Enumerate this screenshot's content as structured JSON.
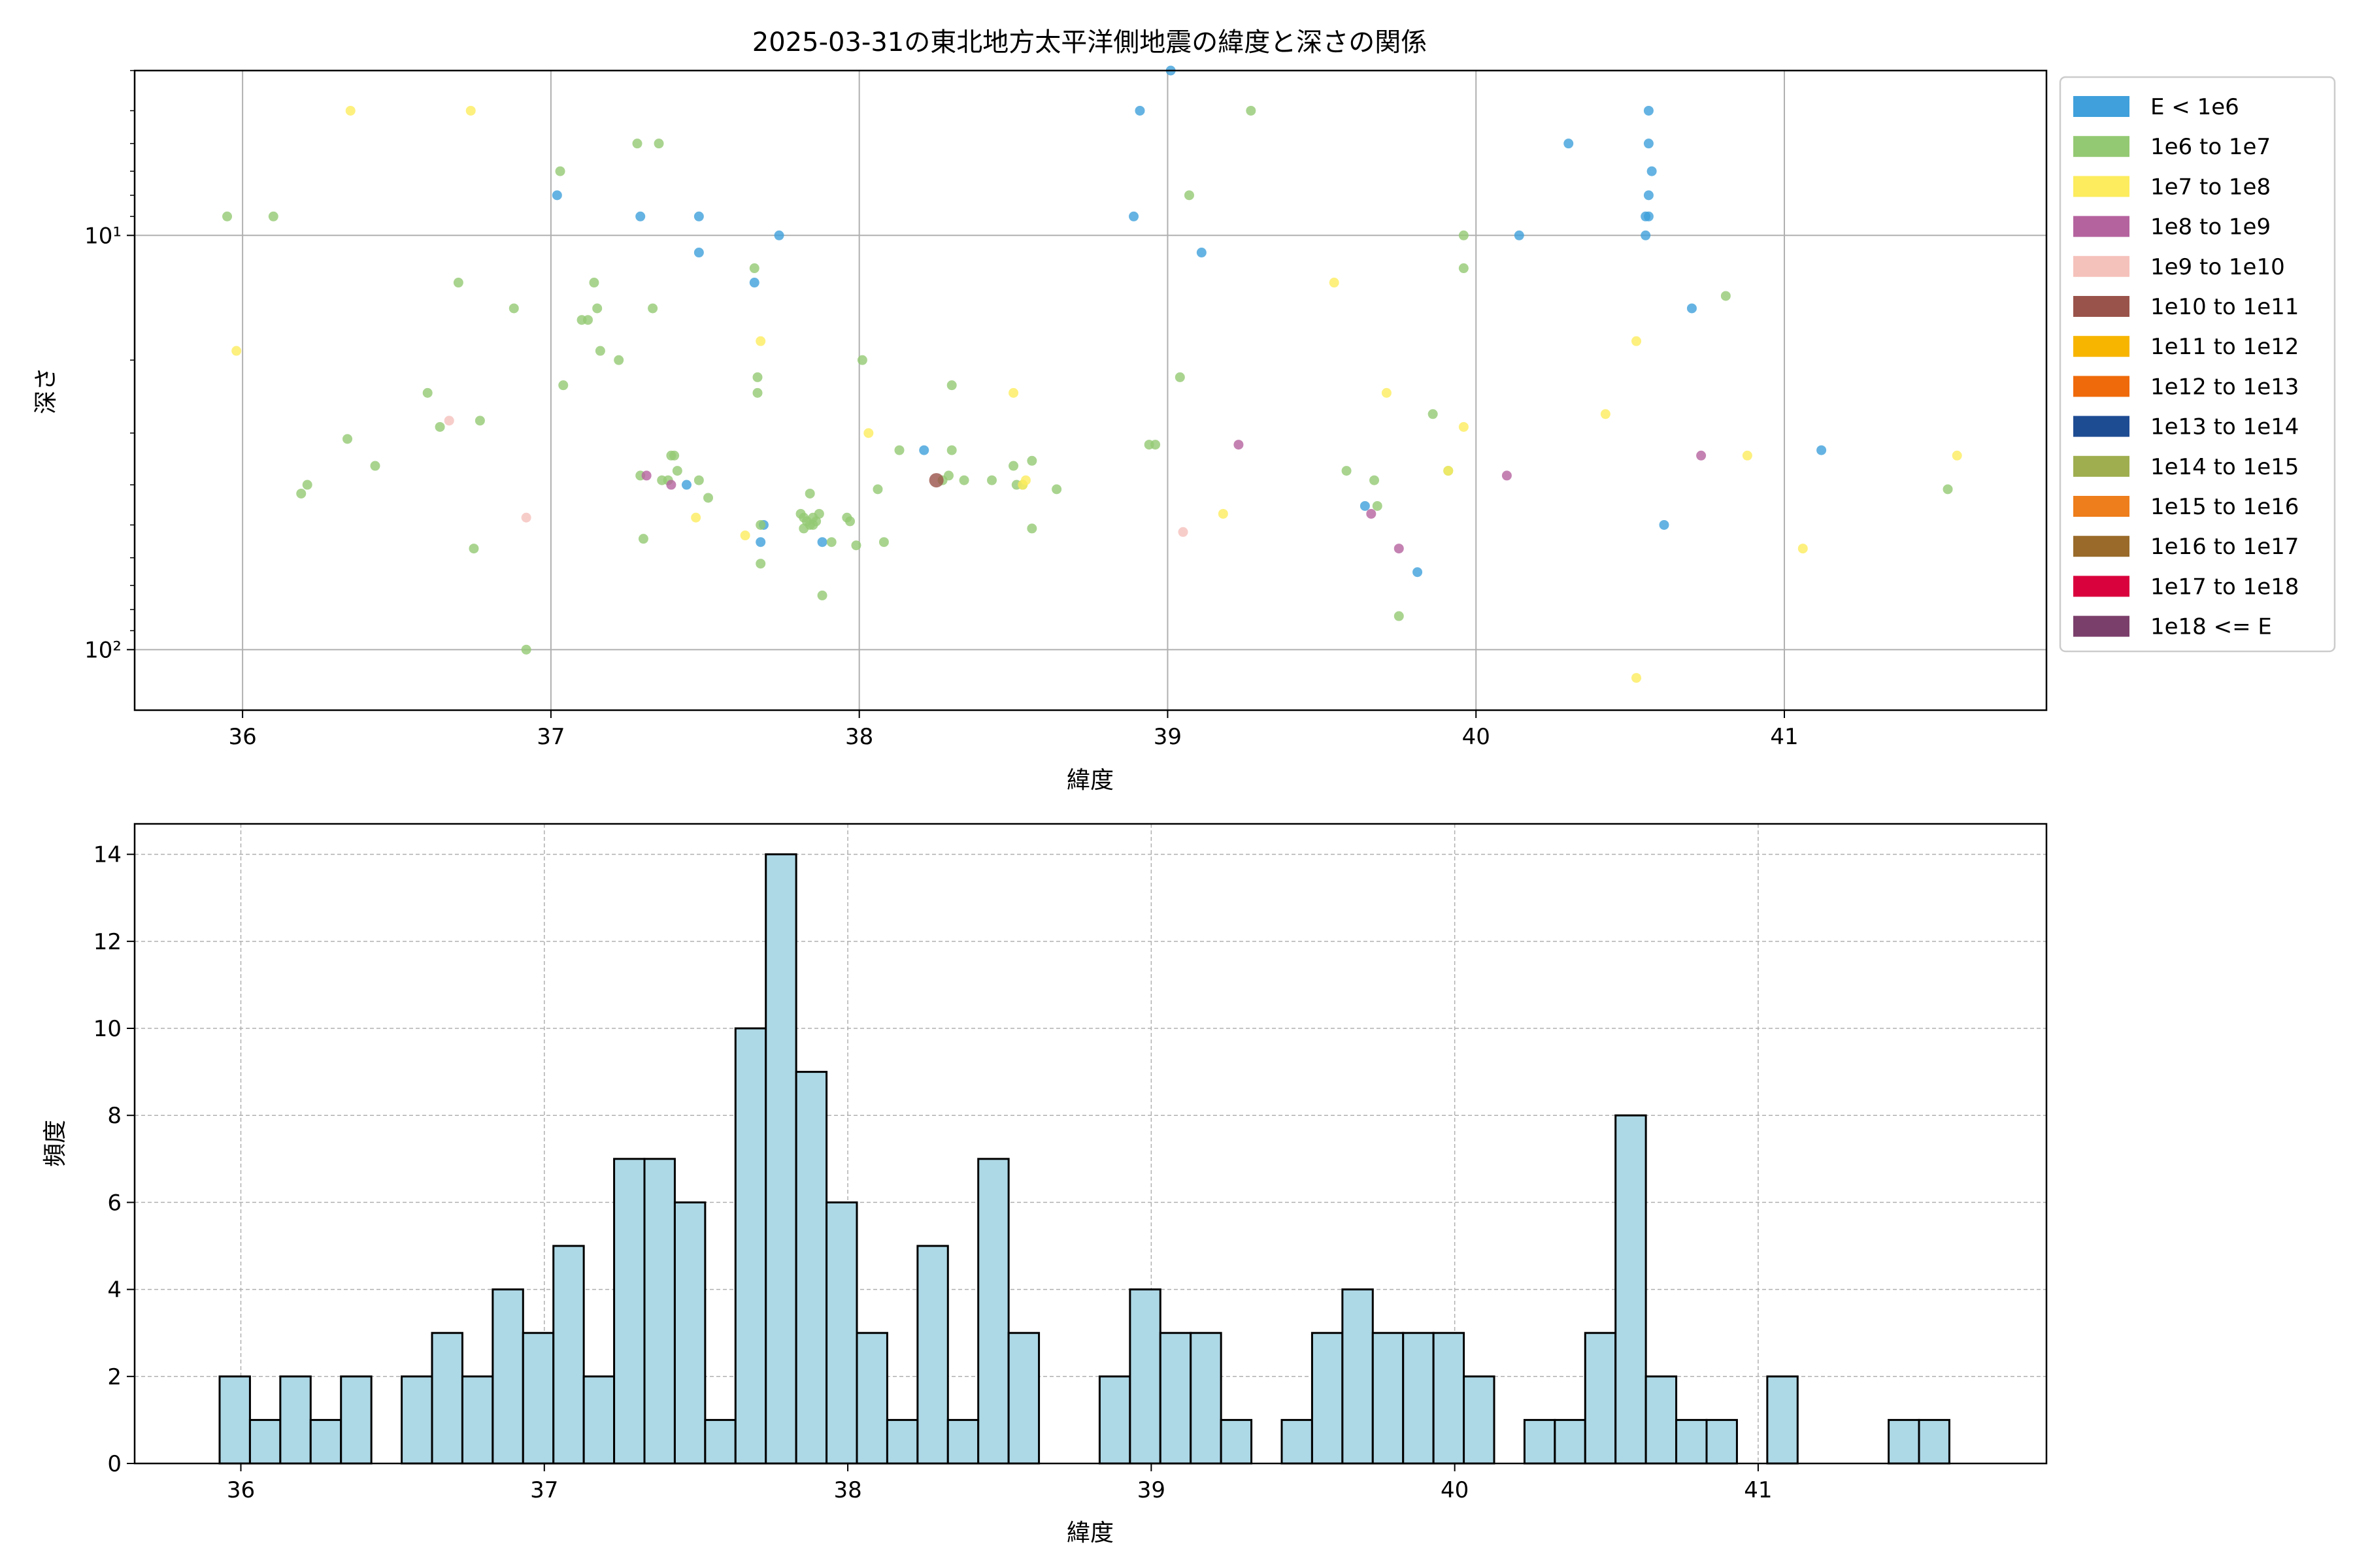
{
  "figure_title": "2025-03-31の東北地方太平洋側地震の緯度と深さの関係",
  "chart_data": [
    {
      "type": "scatter",
      "title": "2025-03-31の東北地方太平洋側地震の緯度と深さの関係",
      "xlabel": "緯度",
      "ylabel": "深さ",
      "y_scale": "log",
      "y_inverted": true,
      "xlim": [
        35.65,
        41.85
      ],
      "ylim": [
        4,
        140
      ],
      "x_ticks": [
        36,
        37,
        38,
        39,
        40,
        41
      ],
      "x_tick_labels": [
        "36",
        "37",
        "38",
        "39",
        "40",
        "41"
      ],
      "y_major_ticks": [
        10,
        100
      ],
      "y_tick_labels": [
        "10¹",
        "10²"
      ],
      "grid": true,
      "legend_placement": "outside-right-top",
      "legend": [
        {
          "label": "E < 1e6",
          "color": "#3fa0db"
        },
        {
          "label": "1e6 to 1e7",
          "color": "#94c973"
        },
        {
          "label": "1e7 to 1e8",
          "color": "#fcec5e"
        },
        {
          "label": "1e8 to 1e9",
          "color": "#b5639f"
        },
        {
          "label": "1e9 to 1e10",
          "color": "#f5c1bb"
        },
        {
          "label": "1e10 to 1e11",
          "color": "#9a534a"
        },
        {
          "label": "1e11 to 1e12",
          "color": "#f7b500"
        },
        {
          "label": "1e12 to 1e13",
          "color": "#ef6a0a"
        },
        {
          "label": "1e13 to 1e14",
          "color": "#1e4c93"
        },
        {
          "label": "1e14 to 1e15",
          "color": "#9fae4f"
        },
        {
          "label": "1e15 to 1e16",
          "color": "#ee7d1b"
        },
        {
          "label": "1e16 to 1e17",
          "color": "#996a29"
        },
        {
          "label": "1e17 to 1e18",
          "color": "#d9023d"
        },
        {
          "label": "1e18 <= E",
          "color": "#7b3f6b"
        }
      ],
      "series": [
        {
          "name": "E < 1e6",
          "color": "#3fa0db",
          "points": [
            [
              37.02,
              8
            ],
            [
              37.29,
              9
            ],
            [
              37.48,
              9
            ],
            [
              37.48,
              11
            ],
            [
              37.66,
              13
            ],
            [
              37.74,
              10
            ],
            [
              37.44,
              40
            ],
            [
              37.69,
              50
            ],
            [
              37.68,
              55
            ],
            [
              37.88,
              55
            ],
            [
              38.21,
              33
            ],
            [
              38.91,
              5
            ],
            [
              38.89,
              9
            ],
            [
              39.01,
              4
            ],
            [
              39.11,
              11
            ],
            [
              39.64,
              45
            ],
            [
              39.81,
              65
            ],
            [
              40.14,
              10
            ],
            [
              40.3,
              6
            ],
            [
              40.56,
              5
            ],
            [
              40.56,
              6
            ],
            [
              40.57,
              7
            ],
            [
              40.56,
              8
            ],
            [
              40.55,
              9
            ],
            [
              40.56,
              9
            ],
            [
              40.55,
              10
            ],
            [
              40.7,
              15
            ],
            [
              40.61,
              50
            ],
            [
              41.12,
              33
            ]
          ]
        },
        {
          "name": "1e6 to 1e7",
          "color": "#94c973",
          "points": [
            [
              35.95,
              9
            ],
            [
              36.1,
              9
            ],
            [
              36.19,
              42
            ],
            [
              36.21,
              40
            ],
            [
              36.34,
              31
            ],
            [
              36.43,
              36
            ],
            [
              36.6,
              24
            ],
            [
              36.64,
              29
            ],
            [
              36.7,
              13
            ],
            [
              36.75,
              57
            ],
            [
              36.77,
              28
            ],
            [
              36.88,
              15
            ],
            [
              36.92,
              100
            ],
            [
              37.03,
              7
            ],
            [
              37.04,
              23
            ],
            [
              37.1,
              16
            ],
            [
              37.12,
              16
            ],
            [
              37.14,
              13
            ],
            [
              37.15,
              15
            ],
            [
              37.16,
              19
            ],
            [
              37.22,
              20
            ],
            [
              37.28,
              6
            ],
            [
              37.29,
              38
            ],
            [
              37.3,
              54
            ],
            [
              37.33,
              15
            ],
            [
              37.35,
              6
            ],
            [
              37.36,
              39
            ],
            [
              37.38,
              39
            ],
            [
              37.39,
              34
            ],
            [
              37.4,
              34
            ],
            [
              37.41,
              37
            ],
            [
              37.48,
              39
            ],
            [
              37.51,
              43
            ],
            [
              37.66,
              12
            ],
            [
              37.67,
              22
            ],
            [
              37.67,
              24
            ],
            [
              37.68,
              50
            ],
            [
              37.68,
              62
            ],
            [
              37.81,
              47
            ],
            [
              37.82,
              48
            ],
            [
              37.83,
              49
            ],
            [
              37.84,
              50
            ],
            [
              37.85,
              48
            ],
            [
              37.86,
              49
            ],
            [
              37.87,
              47
            ],
            [
              37.84,
              42
            ],
            [
              37.82,
              51
            ],
            [
              37.85,
              50
            ],
            [
              37.88,
              74
            ],
            [
              37.91,
              55
            ],
            [
              37.96,
              48
            ],
            [
              37.97,
              49
            ],
            [
              37.99,
              56
            ],
            [
              38.01,
              20
            ],
            [
              38.06,
              41
            ],
            [
              38.08,
              55
            ],
            [
              38.13,
              33
            ],
            [
              38.27,
              39
            ],
            [
              38.29,
              38
            ],
            [
              38.3,
              33
            ],
            [
              38.3,
              23
            ],
            [
              38.34,
              39
            ],
            [
              38.43,
              39
            ],
            [
              38.5,
              36
            ],
            [
              38.51,
              40
            ],
            [
              38.53,
              40
            ],
            [
              38.56,
              35
            ],
            [
              38.56,
              51
            ],
            [
              38.64,
              41
            ],
            [
              38.94,
              32
            ],
            [
              38.96,
              32
            ],
            [
              39.04,
              22
            ],
            [
              39.07,
              8
            ],
            [
              39.27,
              5
            ],
            [
              39.58,
              37
            ],
            [
              39.67,
              39
            ],
            [
              39.68,
              45
            ],
            [
              39.75,
              83
            ],
            [
              39.86,
              27
            ],
            [
              39.91,
              37
            ],
            [
              39.96,
              10
            ],
            [
              39.96,
              12
            ],
            [
              40.81,
              14
            ],
            [
              41.53,
              41
            ]
          ]
        },
        {
          "name": "1e7 to 1e8",
          "color": "#fcec5e",
          "points": [
            [
              35.98,
              19
            ],
            [
              36.35,
              5
            ],
            [
              36.74,
              5
            ],
            [
              37.47,
              48
            ],
            [
              37.63,
              53
            ],
            [
              37.68,
              18
            ],
            [
              38.03,
              30
            ],
            [
              38.5,
              24
            ],
            [
              38.53,
              40
            ],
            [
              38.54,
              39
            ],
            [
              39.18,
              47
            ],
            [
              39.54,
              13
            ],
            [
              39.71,
              24
            ],
            [
              39.91,
              37
            ],
            [
              39.96,
              29
            ],
            [
              40.42,
              27
            ],
            [
              40.52,
              18
            ],
            [
              40.52,
              117
            ],
            [
              40.88,
              34
            ],
            [
              41.06,
              57
            ],
            [
              41.56,
              34
            ]
          ]
        },
        {
          "name": "1e8 to 1e9",
          "color": "#b5639f",
          "points": [
            [
              37.31,
              38
            ],
            [
              37.39,
              40
            ],
            [
              39.23,
              32
            ],
            [
              39.66,
              47
            ],
            [
              39.75,
              57
            ],
            [
              40.1,
              38
            ],
            [
              40.73,
              34
            ]
          ]
        },
        {
          "name": "1e9 to 1e10",
          "color": "#f5c1bb",
          "points": [
            [
              36.67,
              28
            ],
            [
              36.92,
              48
            ],
            [
              39.05,
              52
            ]
          ]
        },
        {
          "name": "1e10 to 1e11",
          "color": "#9a534a",
          "points": [
            [
              38.25,
              39
            ]
          ]
        }
      ]
    },
    {
      "type": "bar",
      "subtype": "histogram",
      "xlabel": "緯度",
      "ylabel": "頻度",
      "xlim": [
        35.65,
        41.95
      ],
      "ylim": [
        0,
        14.7
      ],
      "x_ticks": [
        36,
        37,
        38,
        39,
        40,
        41
      ],
      "x_tick_labels": [
        "36",
        "37",
        "38",
        "39",
        "40",
        "41"
      ],
      "y_ticks": [
        0,
        2,
        4,
        6,
        8,
        10,
        12,
        14
      ],
      "y_tick_labels": [
        "0",
        "2",
        "4",
        "6",
        "8",
        "10",
        "12",
        "14"
      ],
      "grid": true,
      "bar_color": "#add8e6",
      "edge_color": "#000000",
      "bin_start": 35.93,
      "bin_width": 0.1,
      "values": [
        2,
        1,
        2,
        1,
        2,
        0,
        2,
        3,
        2,
        4,
        3,
        5,
        2,
        7,
        7,
        6,
        1,
        10,
        14,
        9,
        6,
        3,
        1,
        5,
        1,
        7,
        3,
        0,
        0,
        2,
        4,
        3,
        3,
        1,
        0,
        1,
        3,
        4,
        3,
        3,
        3,
        2,
        0,
        1,
        1,
        3,
        8,
        2,
        1,
        1,
        0,
        2,
        0,
        0,
        0,
        1,
        1
      ]
    }
  ]
}
